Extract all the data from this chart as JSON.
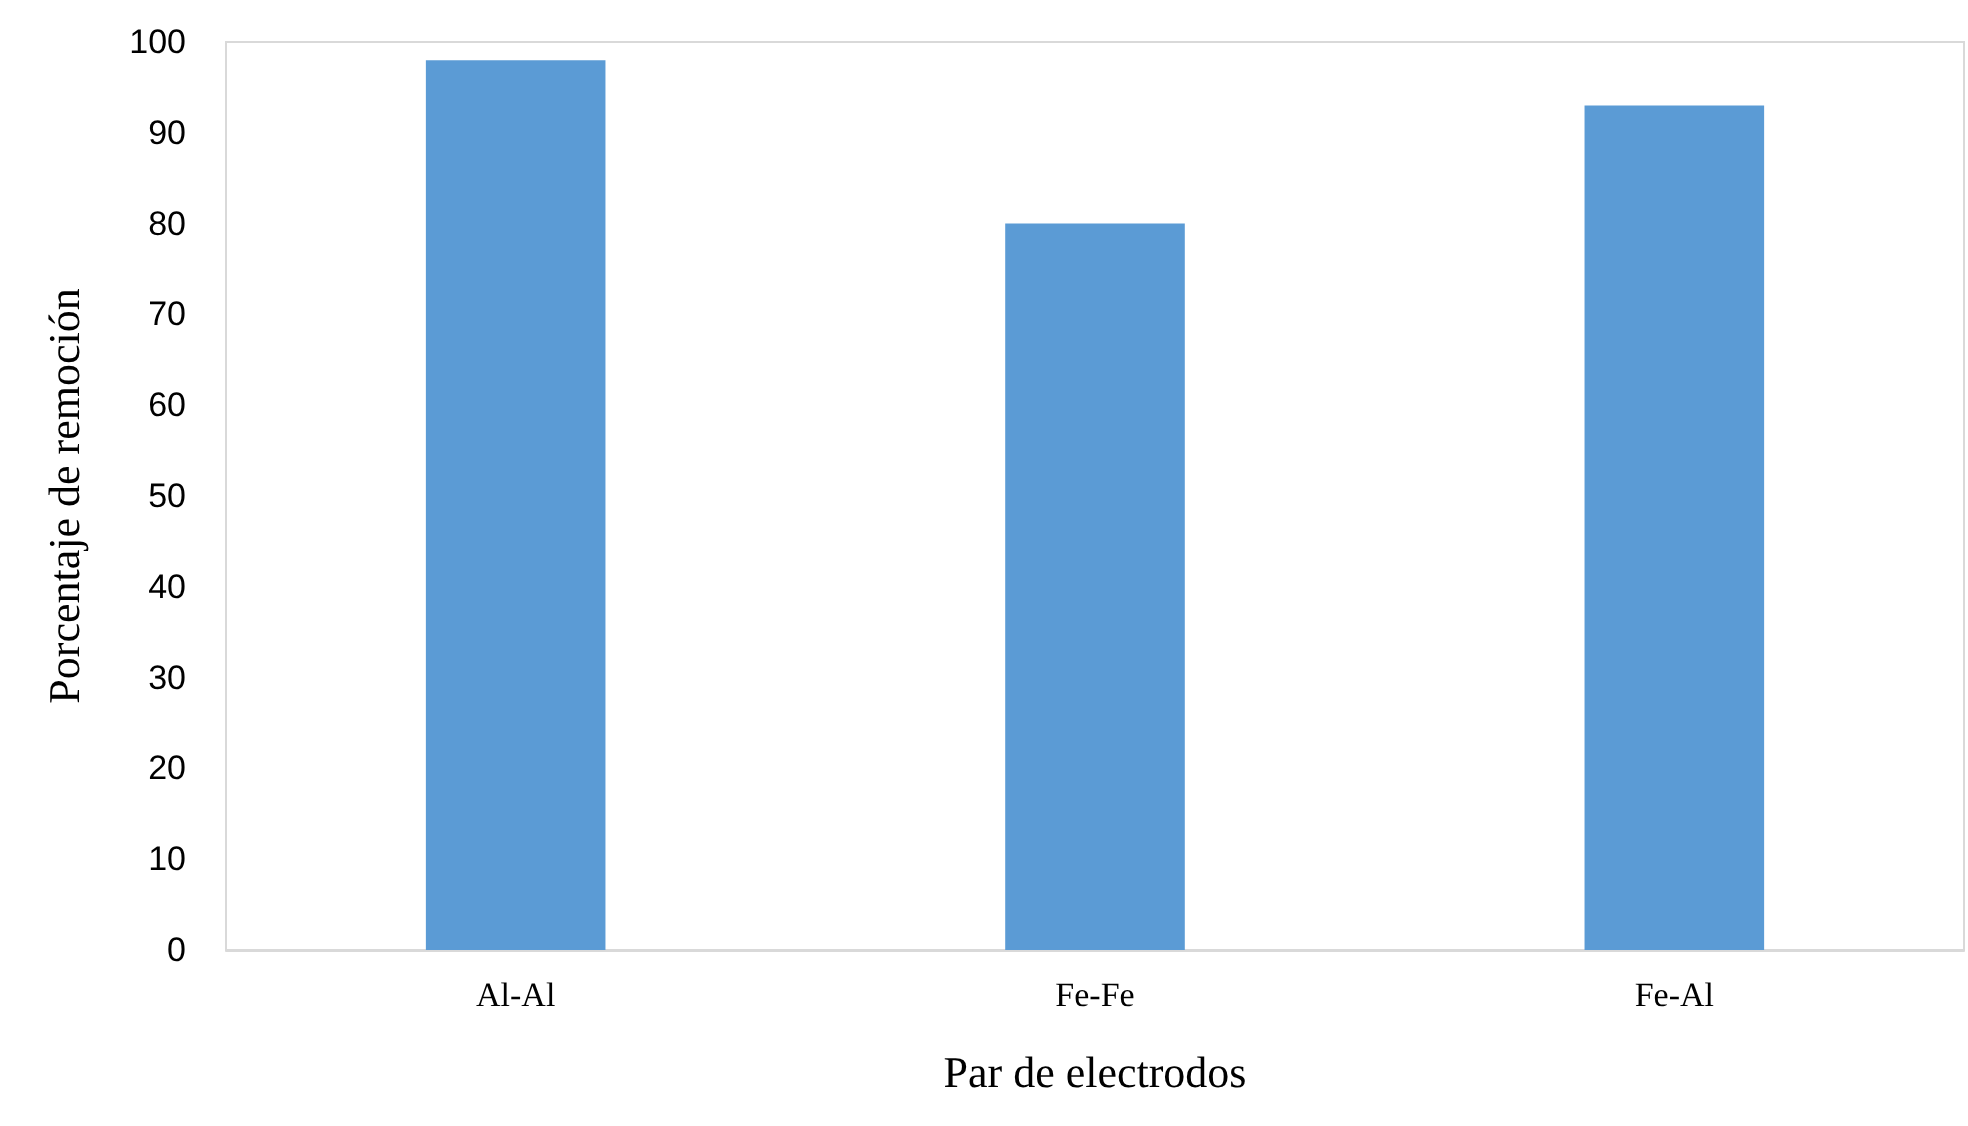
{
  "chart_data": {
    "type": "bar",
    "xlabel": "Par de electrodos",
    "ylabel": "Porcentaje de remoción",
    "categories": [
      "Al-Al",
      "Fe-Fe",
      "Fe-Al"
    ],
    "values": [
      98,
      80,
      93
    ],
    "color": "#5b9bd5",
    "ylim": [
      0,
      100
    ],
    "yticks": [
      0,
      10,
      20,
      30,
      40,
      50,
      60,
      70,
      80,
      90,
      100
    ],
    "grid": false
  }
}
